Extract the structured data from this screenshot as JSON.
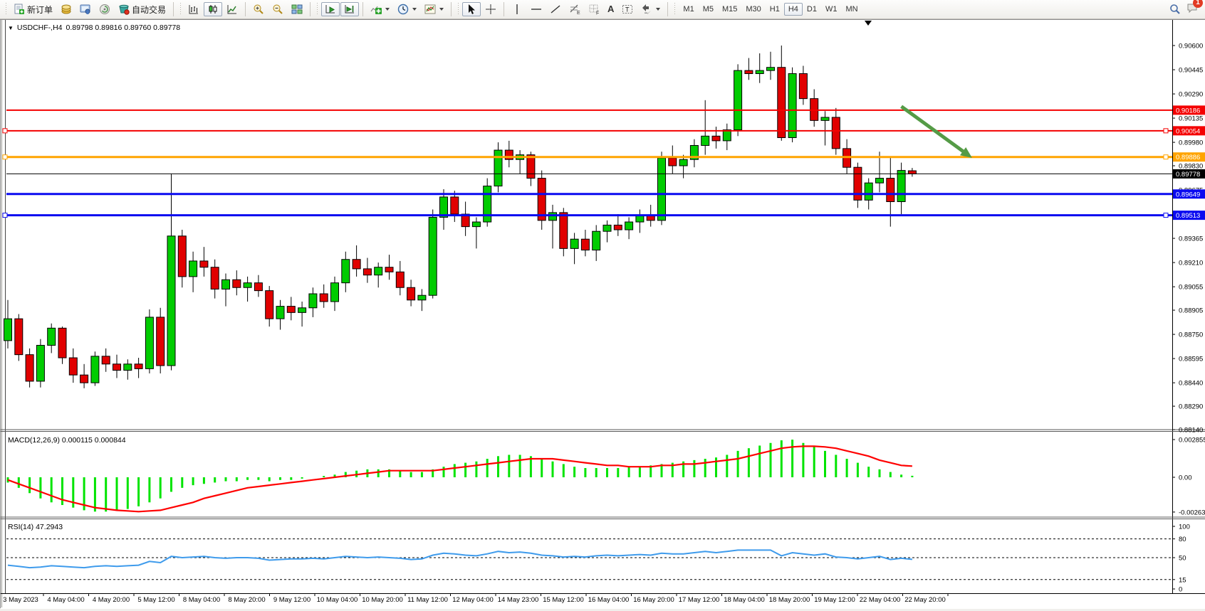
{
  "toolbar": {
    "new_order_label": "新订单",
    "autotrading_label": "自动交易",
    "text_tool_glyph": "A",
    "label_tool_glyph": "T",
    "fibo_glyph": "E",
    "cells_glyph": "F",
    "timeframes": [
      "M1",
      "M5",
      "M15",
      "M30",
      "H1",
      "H4",
      "D1",
      "W1",
      "MN"
    ],
    "active_timeframe": "H4",
    "notification_count": "1"
  },
  "window": {
    "symbol_title": "USDCHF-,H4",
    "ohlc_text": "0.89798 0.89816 0.89760 0.89778"
  },
  "chart_data": [
    {
      "type": "candlestick",
      "symbol": "USDCHF-",
      "timeframe": "H4",
      "current_ohlc": {
        "open": 0.89798,
        "high": 0.89816,
        "low": 0.8976,
        "close": 0.89778
      },
      "ylim": [
        0.8815,
        0.907
      ],
      "grid": false,
      "y_ticks": [
        0.906,
        0.90445,
        0.9029,
        0.90135,
        0.8998,
        0.8983,
        0.89675,
        0.89365,
        0.8921,
        0.89055,
        0.88905,
        0.8875,
        0.88595,
        0.8844,
        0.8829,
        0.8814
      ],
      "x_labels": [
        "3 May 2023",
        "4 May 04:00",
        "4 May 20:00",
        "5 May 12:00",
        "8 May 04:00",
        "8 May 20:00",
        "9 May 12:00",
        "10 May 04:00",
        "10 May 20:00",
        "11 May 12:00",
        "12 May 04:00",
        "14 May 23:00",
        "15 May 12:00",
        "16 May 04:00",
        "16 May 20:00",
        "17 May 12:00",
        "18 May 04:00",
        "18 May 20:00",
        "19 May 12:00",
        "22 May 04:00",
        "22 May 20:00"
      ],
      "colors": {
        "up": "#00CC00",
        "down": "#E10000",
        "wick": "#000000",
        "background": "#FFFFFF"
      },
      "hlines": [
        {
          "price": 0.90186,
          "color": "#F40000",
          "width": 2,
          "handles": false
        },
        {
          "price": 0.90054,
          "color": "#F40000",
          "width": 2,
          "handles": true
        },
        {
          "price": 0.89886,
          "color": "#FFA400",
          "width": 3,
          "handles": true
        },
        {
          "price": 0.89778,
          "color": "#000000",
          "width": 1,
          "handles": false,
          "role": "bid-price-line"
        },
        {
          "price": 0.89649,
          "color": "#0A0AF0",
          "width": 3,
          "handles": false
        },
        {
          "price": 0.89513,
          "color": "#0A0AF0",
          "width": 3,
          "handles": true
        }
      ],
      "annotation_arrow": {
        "start_bar": 82,
        "start_price": 0.9021,
        "end_bar": 88.5,
        "end_price": 0.8988,
        "color": "#559B46"
      },
      "candles": [
        [
          0.8871,
          0.8897,
          0.8866,
          0.8885
        ],
        [
          0.8885,
          0.8888,
          0.8858,
          0.8862
        ],
        [
          0.8862,
          0.8866,
          0.8841,
          0.8845
        ],
        [
          0.8845,
          0.8872,
          0.8841,
          0.8868
        ],
        [
          0.8868,
          0.8882,
          0.8863,
          0.8879
        ],
        [
          0.8879,
          0.888,
          0.8856,
          0.886
        ],
        [
          0.886,
          0.8866,
          0.8844,
          0.8849
        ],
        [
          0.8849,
          0.8856,
          0.88405,
          0.8844
        ],
        [
          0.8844,
          0.8864,
          0.8842,
          0.8861
        ],
        [
          0.8861,
          0.8866,
          0.8851,
          0.8856
        ],
        [
          0.8856,
          0.8862,
          0.8847,
          0.8852
        ],
        [
          0.8852,
          0.8859,
          0.8846,
          0.8856
        ],
        [
          0.8856,
          0.886,
          0.8847,
          0.8853
        ],
        [
          0.8853,
          0.8891,
          0.885,
          0.8886
        ],
        [
          0.8886,
          0.8892,
          0.885,
          0.8855
        ],
        [
          0.8855,
          0.8978,
          0.8852,
          0.8938
        ],
        [
          0.8938,
          0.8942,
          0.8905,
          0.8912
        ],
        [
          0.8912,
          0.8928,
          0.8902,
          0.8922
        ],
        [
          0.8922,
          0.8931,
          0.8912,
          0.8918
        ],
        [
          0.8918,
          0.8923,
          0.8898,
          0.8904
        ],
        [
          0.8904,
          0.8914,
          0.8893,
          0.891
        ],
        [
          0.891,
          0.8916,
          0.89,
          0.8905
        ],
        [
          0.8905,
          0.8912,
          0.8896,
          0.8908
        ],
        [
          0.8908,
          0.8913,
          0.8899,
          0.8903
        ],
        [
          0.8903,
          0.8906,
          0.888,
          0.8885
        ],
        [
          0.8885,
          0.8897,
          0.8878,
          0.8893
        ],
        [
          0.8893,
          0.8899,
          0.8884,
          0.8889
        ],
        [
          0.8889,
          0.8896,
          0.888,
          0.8892
        ],
        [
          0.8892,
          0.8905,
          0.8886,
          0.8901
        ],
        [
          0.8901,
          0.8907,
          0.8892,
          0.8896
        ],
        [
          0.8896,
          0.8912,
          0.889,
          0.8908
        ],
        [
          0.8908,
          0.8928,
          0.8902,
          0.8923
        ],
        [
          0.8923,
          0.8932,
          0.8912,
          0.8917
        ],
        [
          0.8917,
          0.8924,
          0.8908,
          0.8913
        ],
        [
          0.8913,
          0.8921,
          0.8905,
          0.8918
        ],
        [
          0.8918,
          0.8926,
          0.891,
          0.8915
        ],
        [
          0.8915,
          0.8922,
          0.89,
          0.8905
        ],
        [
          0.8905,
          0.891,
          0.8893,
          0.8897
        ],
        [
          0.8897,
          0.8904,
          0.889,
          0.89
        ],
        [
          0.89,
          0.8955,
          0.8898,
          0.895
        ],
        [
          0.895,
          0.8968,
          0.8942,
          0.8963
        ],
        [
          0.8963,
          0.8967,
          0.8947,
          0.8952
        ],
        [
          0.8952,
          0.896,
          0.8938,
          0.8944
        ],
        [
          0.8944,
          0.895,
          0.893,
          0.8947
        ],
        [
          0.8947,
          0.8975,
          0.8944,
          0.897
        ],
        [
          0.897,
          0.8998,
          0.8966,
          0.8993
        ],
        [
          0.8993,
          0.8999,
          0.8982,
          0.8987
        ],
        [
          0.8987,
          0.8993,
          0.8978,
          0.899
        ],
        [
          0.899,
          0.8992,
          0.897,
          0.8975
        ],
        [
          0.8975,
          0.898,
          0.8942,
          0.8948
        ],
        [
          0.8948,
          0.8958,
          0.893,
          0.8953
        ],
        [
          0.8953,
          0.8956,
          0.8925,
          0.893
        ],
        [
          0.893,
          0.894,
          0.892,
          0.8936
        ],
        [
          0.8936,
          0.8942,
          0.8925,
          0.8929
        ],
        [
          0.8929,
          0.8945,
          0.8922,
          0.8941
        ],
        [
          0.8941,
          0.8948,
          0.8934,
          0.8945
        ],
        [
          0.8945,
          0.8952,
          0.8938,
          0.8942
        ],
        [
          0.8942,
          0.895,
          0.8936,
          0.8947
        ],
        [
          0.8947,
          0.8955,
          0.894,
          0.8951
        ],
        [
          0.8951,
          0.8958,
          0.8944,
          0.8948
        ],
        [
          0.8948,
          0.8992,
          0.8945,
          0.8988
        ],
        [
          0.8988,
          0.8996,
          0.8978,
          0.8983
        ],
        [
          0.8983,
          0.899,
          0.8975,
          0.8987
        ],
        [
          0.8987,
          0.9,
          0.8982,
          0.8996
        ],
        [
          0.8996,
          0.9025,
          0.899,
          0.9002
        ],
        [
          0.9002,
          0.9008,
          0.8994,
          0.8999
        ],
        [
          0.8999,
          0.901,
          0.8993,
          0.9006
        ],
        [
          0.9006,
          0.9048,
          0.9002,
          0.9044
        ],
        [
          0.9044,
          0.9052,
          0.9038,
          0.9042
        ],
        [
          0.9042,
          0.9055,
          0.9036,
          0.9044
        ],
        [
          0.9044,
          0.9056,
          0.9038,
          0.9046
        ],
        [
          0.9046,
          0.906,
          0.8999,
          0.9001
        ],
        [
          0.9001,
          0.9046,
          0.8998,
          0.9042
        ],
        [
          0.9042,
          0.9047,
          0.9022,
          0.9026
        ],
        [
          0.9026,
          0.9032,
          0.9008,
          0.9012
        ],
        [
          0.9012,
          0.9018,
          0.8996,
          0.9014
        ],
        [
          0.9014,
          0.902,
          0.899,
          0.8994
        ],
        [
          0.8994,
          0.9,
          0.8978,
          0.8982
        ],
        [
          0.8982,
          0.8985,
          0.8956,
          0.8961
        ],
        [
          0.8961,
          0.8975,
          0.8955,
          0.8972
        ],
        [
          0.8972,
          0.8992,
          0.8966,
          0.8975
        ],
        [
          0.8975,
          0.8988,
          0.8944,
          0.896
        ],
        [
          0.896,
          0.8985,
          0.8952,
          0.898
        ],
        [
          0.89798,
          0.89816,
          0.8976,
          0.89778
        ]
      ]
    },
    {
      "type": "bar",
      "name": "MACD",
      "params": "(12,26,9)",
      "current_main": "0.000115",
      "current_signal": "0.000844",
      "ylim": [
        -0.002634,
        0.002855
      ],
      "y_ticks": [
        0.002855,
        0.0,
        -0.002634
      ],
      "colors": {
        "histogram": "#00E400",
        "signal": "#FF0000"
      },
      "values": [
        -0.0004,
        -0.0008,
        -0.0012,
        -0.0016,
        -0.0019,
        -0.0021,
        -0.0023,
        -0.0025,
        -0.0026,
        -0.0026,
        -0.0025,
        -0.0024,
        -0.0022,
        -0.0019,
        -0.0016,
        -0.0011,
        -0.0008,
        -0.0006,
        -0.0005,
        -0.0004,
        -0.0003,
        -0.0003,
        -0.0002,
        -0.0002,
        -0.0003,
        -0.0002,
        -0.0002,
        -0.0001,
        0.0,
        0.0001,
        0.0002,
        0.0004,
        0.0005,
        0.0006,
        0.0006,
        0.0006,
        0.0005,
        0.0004,
        0.0004,
        0.0006,
        0.0008,
        0.001,
        0.0011,
        0.0012,
        0.0014,
        0.0016,
        0.0017,
        0.0017,
        0.0016,
        0.0014,
        0.0012,
        0.001,
        0.0008,
        0.0007,
        0.0007,
        0.0007,
        0.0007,
        0.0008,
        0.0008,
        0.0009,
        0.001,
        0.0011,
        0.0012,
        0.0013,
        0.0014,
        0.0015,
        0.0017,
        0.002,
        0.0022,
        0.0024,
        0.0026,
        0.0028,
        0.00285,
        0.0026,
        0.0023,
        0.002,
        0.0017,
        0.0014,
        0.0011,
        0.0008,
        0.0006,
        0.0004,
        0.0002,
        0.000115
      ],
      "signal": [
        -0.0002,
        -0.0005,
        -0.0008,
        -0.0011,
        -0.0014,
        -0.0017,
        -0.0019,
        -0.0021,
        -0.0023,
        -0.0024,
        -0.0025,
        -0.00255,
        -0.0026,
        -0.00255,
        -0.0025,
        -0.0023,
        -0.0021,
        -0.0019,
        -0.0016,
        -0.0014,
        -0.0012,
        -0.001,
        -0.0008,
        -0.0007,
        -0.0006,
        -0.0005,
        -0.0004,
        -0.0003,
        -0.0002,
        -0.0001,
        0.0,
        0.0001,
        0.0002,
        0.0003,
        0.0004,
        0.0005,
        0.0005,
        0.0005,
        0.0005,
        0.0005,
        0.0006,
        0.0007,
        0.0008,
        0.0009,
        0.001,
        0.0011,
        0.0012,
        0.0013,
        0.0014,
        0.0014,
        0.0014,
        0.0013,
        0.0012,
        0.0011,
        0.001,
        0.0009,
        0.0009,
        0.0008,
        0.0008,
        0.0008,
        0.0009,
        0.0009,
        0.001,
        0.001,
        0.0011,
        0.0012,
        0.0013,
        0.0014,
        0.0016,
        0.0018,
        0.002,
        0.0022,
        0.0023,
        0.00235,
        0.00235,
        0.0023,
        0.0022,
        0.002,
        0.0018,
        0.0016,
        0.0013,
        0.0011,
        0.0009,
        0.000844
      ]
    },
    {
      "type": "line",
      "name": "RSI",
      "params": "(14)",
      "current": "47.2943",
      "ylim": [
        0,
        100
      ],
      "y_ticks": [
        100,
        80,
        50,
        15,
        0
      ],
      "levels": [
        80,
        50,
        15
      ],
      "color": "#3E9BEC",
      "values": [
        38,
        36,
        34,
        35,
        37,
        36,
        35,
        34,
        36,
        37,
        36,
        37,
        38,
        44,
        42,
        52,
        50,
        51,
        52,
        50,
        49,
        50,
        50,
        49,
        46,
        47,
        48,
        48,
        49,
        48,
        50,
        52,
        51,
        50,
        51,
        50,
        49,
        47,
        48,
        54,
        57,
        56,
        54,
        53,
        56,
        60,
        58,
        59,
        57,
        54,
        53,
        51,
        52,
        51,
        53,
        54,
        53,
        54,
        55,
        54,
        57,
        56,
        56,
        58,
        60,
        58,
        60,
        62,
        62,
        62,
        62,
        53,
        58,
        56,
        54,
        56,
        51,
        50,
        48,
        50,
        52,
        47,
        49,
        47.2943
      ]
    }
  ]
}
